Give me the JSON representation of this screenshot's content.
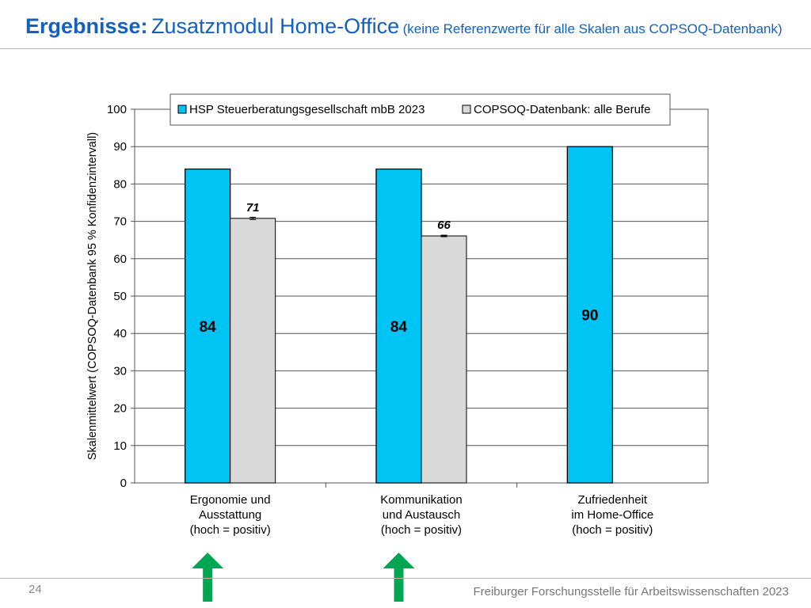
{
  "slide": {
    "title_bold": "Ergebnisse:",
    "title_main": "Zusatzmodul Home-Office",
    "title_note": "(keine Referenzwerte für alle Skalen aus COPSOQ-Datenbank)",
    "page_number": "24",
    "footer": "Freiburger Forschungsstelle für Arbeitswissenschaften  2023"
  },
  "chart_data": {
    "type": "bar",
    "title": "",
    "ylabel": "Skalenmittelwert (COPSOQ-Datenbank 95 % Konfidenzintervall)",
    "xlabel": "",
    "ylim": [
      0,
      100
    ],
    "yticks": [
      0,
      10,
      20,
      30,
      40,
      50,
      60,
      70,
      80,
      90,
      100
    ],
    "grid": true,
    "legend_position": "top",
    "categories": [
      [
        "Ergonomie und",
        "Ausstattung",
        "(hoch = positiv)"
      ],
      [
        "Kommunikation",
        "und Austausch",
        "(hoch = positiv)"
      ],
      [
        "Zufriedenheit",
        "im Home-Office",
        "(hoch = positiv)"
      ]
    ],
    "series": [
      {
        "name": "HSP Steuerberatungsgesellschaft mbB 2023",
        "color": "#00c4f4",
        "values": [
          84,
          84,
          90
        ],
        "labels": [
          "84",
          "84",
          "90"
        ]
      },
      {
        "name": "COPSOQ-Datenbank: alle Berufe",
        "color": "#d9d9d9",
        "values": [
          70.8,
          66.1,
          null
        ],
        "labels": [
          "71",
          "66",
          ""
        ],
        "ci": [
          [
            70.5,
            71.1
          ],
          [
            65.9,
            66.3
          ],
          null
        ]
      }
    ],
    "annotations": [
      {
        "type": "green-arrow-up",
        "category_index": 0
      },
      {
        "type": "green-arrow-up",
        "category_index": 1
      }
    ]
  }
}
